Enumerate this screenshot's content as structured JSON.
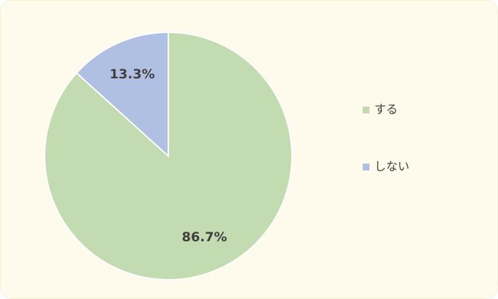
{
  "chart_data": {
    "type": "pie",
    "categories": [
      "する",
      "しない"
    ],
    "values": [
      86.7,
      13.3
    ],
    "value_labels": [
      "86.7%",
      "13.3%"
    ],
    "colors": [
      "#c3dbb0",
      "#b0c0e2"
    ],
    "legend": "right"
  }
}
